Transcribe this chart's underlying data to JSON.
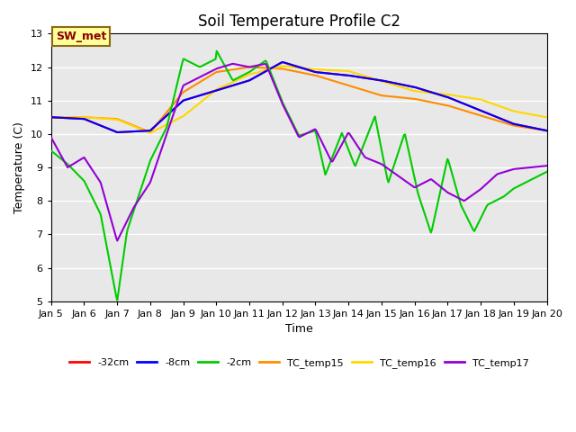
{
  "title": "Soil Temperature Profile C2",
  "xlabel": "Time",
  "ylabel": "Temperature (C)",
  "ylim": [
    5.0,
    13.0
  ],
  "yticks": [
    5.0,
    6.0,
    7.0,
    8.0,
    9.0,
    10.0,
    11.0,
    12.0,
    13.0
  ],
  "xtick_positions": [
    5,
    6,
    7,
    8,
    9,
    10,
    11,
    12,
    13,
    14,
    15,
    16,
    17,
    18,
    19,
    20
  ],
  "xtick_labels": [
    "Jan 5",
    "Jan 6",
    "Jan 7",
    "Jan 8",
    "Jan 9",
    "Jan 10",
    "Jan 11",
    "Jan 12",
    "Jan 13",
    "Jan 14",
    "Jan 15",
    "Jan 16",
    "Jan 17",
    "Jan 18",
    "Jan 19",
    "Jan 20"
  ],
  "annotation_text": "SW_met",
  "annotation_color": "#8B0000",
  "annotation_bg": "#FFFF99",
  "annotation_border": "#8B6914",
  "bg_color": "#E8E8E8",
  "lines": {
    "-32cm": {
      "color": "#FF0000",
      "lw": 1.5
    },
    "-8cm": {
      "color": "#0000FF",
      "lw": 1.5
    },
    "-2cm": {
      "color": "#00CC00",
      "lw": 1.5
    },
    "TC_temp15": {
      "color": "#FF8C00",
      "lw": 1.5
    },
    "TC_temp16": {
      "color": "#FFD700",
      "lw": 1.5
    },
    "TC_temp17": {
      "color": "#9400D3",
      "lw": 1.5
    }
  },
  "n_points": 480,
  "time_start": 5,
  "time_end": 20
}
